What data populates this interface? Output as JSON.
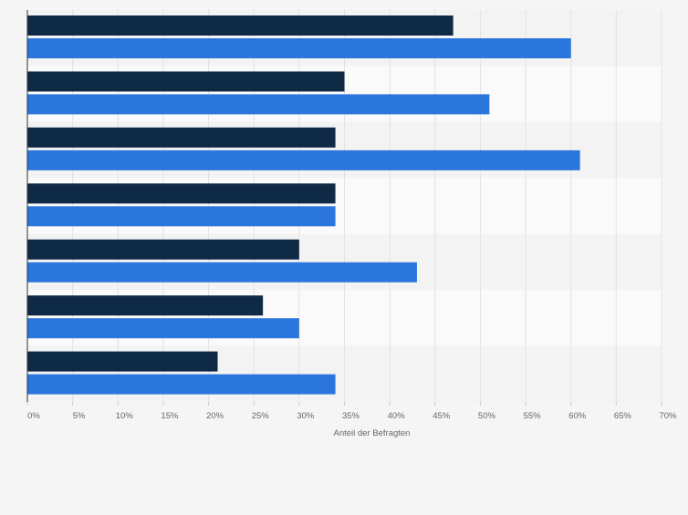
{
  "chart_data": {
    "type": "bar",
    "orientation": "horizontal",
    "categories": [
      "",
      "",
      "",
      "",
      "",
      "",
      ""
    ],
    "series": [
      {
        "values": [
          47,
          35,
          34,
          34,
          30,
          26,
          21
        ],
        "color": "#0f2a45"
      },
      {
        "values": [
          60,
          51,
          61,
          34,
          43,
          30,
          34
        ],
        "color": "#2a76dd"
      }
    ],
    "xlabel": "Anteil der Befragten",
    "xlim": [
      0,
      70
    ],
    "xticks": [
      0,
      5,
      10,
      15,
      20,
      25,
      30,
      35,
      40,
      45,
      50,
      55,
      60,
      65,
      70
    ],
    "tick_suffix": "%",
    "grid": true,
    "legend": "none",
    "band_colors": [
      "#f3f3f3",
      "#fafafa"
    ],
    "grid_color": "#e2e2e2",
    "axis_color": "#333333"
  }
}
